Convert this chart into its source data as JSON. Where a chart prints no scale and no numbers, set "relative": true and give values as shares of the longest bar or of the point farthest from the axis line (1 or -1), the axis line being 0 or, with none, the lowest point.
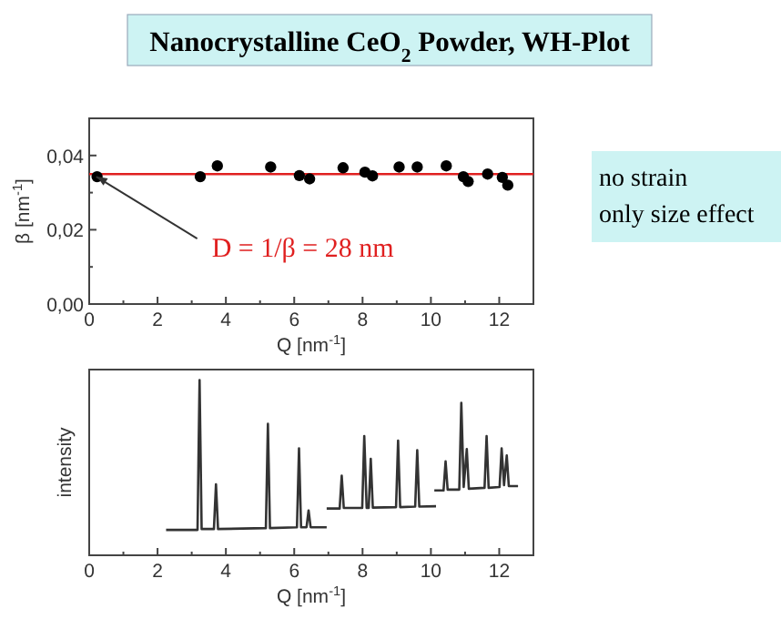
{
  "chart_data": [
    {
      "type": "scatter",
      "title": "Nanocrystalline CeO$_{2}$ Powder, WH-Plot",
      "xlabel": "Q [nm$^{-1}$]",
      "ylabel": "β [nm$^{-1}$]",
      "x": [
        0.23,
        3.25,
        3.75,
        5.31,
        6.15,
        6.45,
        7.43,
        8.07,
        8.29,
        9.07,
        9.6,
        10.45,
        10.95,
        11.09,
        11.66,
        12.09,
        12.25
      ],
      "series": [
        {
          "color": "#000000",
          "values": [
            0.0343,
            0.0343,
            0.0372,
            0.0369,
            0.0346,
            0.0337,
            0.0367,
            0.0355,
            0.0345,
            0.0369,
            0.0369,
            0.0372,
            0.0343,
            0.033,
            0.035,
            0.0341,
            0.032
          ]
        }
      ],
      "marker": "circle",
      "xlim": [
        0,
        13
      ],
      "xticks": [
        0,
        {
          "value": 1,
          "label": null
        },
        2,
        {
          "value": 3,
          "label": null
        },
        4,
        {
          "value": 5,
          "label": null
        },
        6,
        {
          "value": 7,
          "label": null
        },
        8,
        {
          "value": 9,
          "label": null
        },
        10,
        {
          "value": 11,
          "label": null
        },
        12
      ],
      "ylim": [
        0,
        0.05
      ],
      "yticks": [
        {
          "value": 0,
          "label": "0,00"
        },
        {
          "value": 0.01,
          "label": null
        },
        {
          "value": 0.02,
          "label": "0,02"
        },
        {
          "value": 0.03,
          "label": null
        },
        {
          "value": 0.04,
          "label": "0,04"
        }
      ],
      "ref_lines": [
        {
          "axis": "y",
          "value": 0.035,
          "color": "#e02020"
        }
      ],
      "annotations": [
        {
          "text": "D = 1/β = 28 nm",
          "x": 0.23,
          "y": 0.0343
        },
        "no strain\nonly size effect"
      ]
    },
    {
      "type": "line",
      "relative": true,
      "xlabel": "Q [nm$^{-1}$]",
      "ylabel": "intensity",
      "xlim": [
        0,
        13
      ],
      "xticks": [
        0,
        {
          "value": 1,
          "label": null
        },
        2,
        {
          "value": 3,
          "label": null
        },
        4,
        {
          "value": 5,
          "label": null
        },
        6,
        {
          "value": 7,
          "label": null
        },
        8,
        {
          "value": 9,
          "label": null
        },
        10,
        {
          "value": 11,
          "label": null
        },
        12
      ],
      "series": [
        {
          "color": "#333333",
          "x": [
            2.25,
            3.17,
            3.23,
            3.29,
            3.65,
            3.71,
            3.77,
            5.17,
            5.23,
            5.29,
            6.08,
            6.14,
            6.2,
            6.36,
            6.42,
            6.48,
            6.95
          ],
          "values": [
            0.145,
            0.145,
            1.0,
            0.15,
            0.15,
            0.405,
            0.15,
            0.155,
            0.75,
            0.155,
            0.16,
            0.61,
            0.16,
            0.16,
            0.256,
            0.16,
            0.16
          ]
        },
        {
          "color": "#333333",
          "x": [
            6.95,
            7.33,
            7.39,
            7.45,
            7.99,
            8.05,
            8.12,
            8.18,
            8.24,
            8.3,
            8.98,
            9.04,
            9.1,
            9.54,
            9.6,
            9.66,
            10.15
          ],
          "values": [
            0.267,
            0.267,
            0.454,
            0.27,
            0.27,
            0.68,
            0.27,
            0.27,
            0.55,
            0.272,
            0.275,
            0.654,
            0.275,
            0.278,
            0.6,
            0.278,
            0.28
          ]
        },
        {
          "color": "#333333",
          "x": [
            10.1,
            10.37,
            10.43,
            10.49,
            10.83,
            10.89,
            10.96,
            11.05,
            11.11,
            11.57,
            11.63,
            11.69,
            12.01,
            12.07,
            12.14,
            12.22,
            12.28,
            12.55
          ],
          "values": [
            0.37,
            0.37,
            0.536,
            0.375,
            0.375,
            0.87,
            0.39,
            0.606,
            0.38,
            0.385,
            0.68,
            0.385,
            0.39,
            0.61,
            0.4,
            0.57,
            0.395,
            0.395
          ]
        }
      ]
    }
  ]
}
